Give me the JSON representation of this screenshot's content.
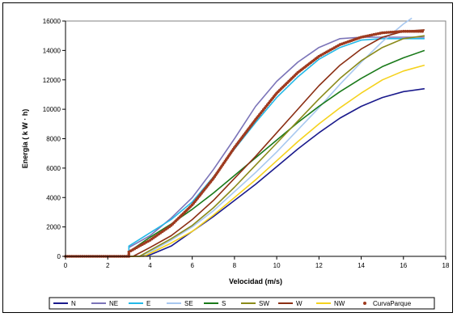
{
  "chart_data": {
    "type": "line",
    "xlabel": "Velocidad (m/s)",
    "ylabel": "Energía ( k W · h)",
    "xlim": [
      0,
      18
    ],
    "ylim": [
      0,
      16000
    ],
    "xticks": [
      "0",
      "2",
      "4",
      "6",
      "8",
      "10",
      "12",
      "14",
      "16",
      "18"
    ],
    "yticks": [
      "0",
      "2000",
      "4000",
      "6000",
      "8000",
      "10000",
      "12000",
      "14000",
      "16000"
    ],
    "grid": false,
    "legend_position": "bottom",
    "series": [
      {
        "name": "N",
        "color": "#1a1a8c",
        "style": "line",
        "points": [
          [
            0,
            0
          ],
          [
            3.5,
            0
          ],
          [
            4,
            100
          ],
          [
            5,
            700
          ],
          [
            6,
            1700
          ],
          [
            7,
            2700
          ],
          [
            8,
            3800
          ],
          [
            9,
            4900
          ],
          [
            10,
            6100
          ],
          [
            11,
            7300
          ],
          [
            12,
            8400
          ],
          [
            13,
            9400
          ],
          [
            14,
            10200
          ],
          [
            15,
            10800
          ],
          [
            16,
            11200
          ],
          [
            17,
            11400
          ]
        ]
      },
      {
        "name": "NE",
        "color": "#7b74b8",
        "style": "line",
        "points": [
          [
            0,
            0
          ],
          [
            3,
            0
          ],
          [
            3,
            600
          ],
          [
            4,
            1400
          ],
          [
            5,
            2600
          ],
          [
            6,
            4000
          ],
          [
            7,
            5900
          ],
          [
            8,
            8000
          ],
          [
            9,
            10200
          ],
          [
            10,
            11900
          ],
          [
            11,
            13200
          ],
          [
            12,
            14200
          ],
          [
            13,
            14800
          ],
          [
            14,
            14900
          ],
          [
            17,
            14900
          ]
        ]
      },
      {
        "name": "E",
        "color": "#23b9e8",
        "style": "line",
        "points": [
          [
            0,
            0
          ],
          [
            3,
            0
          ],
          [
            3,
            700
          ],
          [
            4,
            1600
          ],
          [
            5,
            2500
          ],
          [
            6,
            3700
          ],
          [
            7,
            5400
          ],
          [
            8,
            7300
          ],
          [
            9,
            9100
          ],
          [
            10,
            10800
          ],
          [
            11,
            12200
          ],
          [
            12,
            13400
          ],
          [
            13,
            14200
          ],
          [
            14,
            14700
          ],
          [
            15,
            14800
          ],
          [
            17,
            14800
          ]
        ]
      },
      {
        "name": "SE",
        "color": "#a8c8f0",
        "style": "line",
        "points": [
          [
            0,
            0
          ],
          [
            3.5,
            0
          ],
          [
            4,
            300
          ],
          [
            5,
            1100
          ],
          [
            6,
            2000
          ],
          [
            7,
            3100
          ],
          [
            8,
            4400
          ],
          [
            9,
            5700
          ],
          [
            10,
            7100
          ],
          [
            11,
            8600
          ],
          [
            12,
            10100
          ],
          [
            13,
            11700
          ],
          [
            14,
            13200
          ],
          [
            15,
            14600
          ],
          [
            16,
            15800
          ],
          [
            16.4,
            16200
          ]
        ]
      },
      {
        "name": "S",
        "color": "#1a7a1a",
        "style": "line",
        "points": [
          [
            0,
            0
          ],
          [
            3,
            0
          ],
          [
            3,
            300
          ],
          [
            4,
            1300
          ],
          [
            5,
            2200
          ],
          [
            6,
            3200
          ],
          [
            7,
            4300
          ],
          [
            8,
            5500
          ],
          [
            9,
            6700
          ],
          [
            10,
            7900
          ],
          [
            11,
            9100
          ],
          [
            12,
            10200
          ],
          [
            13,
            11200
          ],
          [
            14,
            12100
          ],
          [
            15,
            12900
          ],
          [
            16,
            13500
          ],
          [
            17,
            14000
          ]
        ]
      },
      {
        "name": "SW",
        "color": "#8a8a1a",
        "style": "line",
        "points": [
          [
            0,
            0
          ],
          [
            3.5,
            0
          ],
          [
            4,
            400
          ],
          [
            5,
            1200
          ],
          [
            6,
            2100
          ],
          [
            7,
            3300
          ],
          [
            8,
            4700
          ],
          [
            9,
            6200
          ],
          [
            10,
            7700
          ],
          [
            11,
            9200
          ],
          [
            12,
            10700
          ],
          [
            13,
            12100
          ],
          [
            14,
            13300
          ],
          [
            15,
            14200
          ],
          [
            16,
            14800
          ],
          [
            17,
            15000
          ]
        ]
      },
      {
        "name": "W",
        "color": "#8b2f14",
        "style": "line",
        "points": [
          [
            0,
            0
          ],
          [
            3.2,
            0
          ],
          [
            4,
            600
          ],
          [
            5,
            1400
          ],
          [
            6,
            2500
          ],
          [
            7,
            3800
          ],
          [
            8,
            5300
          ],
          [
            9,
            6800
          ],
          [
            10,
            8400
          ],
          [
            11,
            10000
          ],
          [
            12,
            11600
          ],
          [
            13,
            13000
          ],
          [
            14,
            14100
          ],
          [
            15,
            14900
          ],
          [
            16,
            15300
          ],
          [
            17,
            15400
          ]
        ]
      },
      {
        "name": "NW",
        "color": "#f5d21e",
        "style": "line",
        "points": [
          [
            0,
            0
          ],
          [
            3.7,
            0
          ],
          [
            4,
            200
          ],
          [
            5,
            900
          ],
          [
            6,
            1700
          ],
          [
            7,
            2800
          ],
          [
            8,
            4000
          ],
          [
            9,
            5200
          ],
          [
            10,
            6500
          ],
          [
            11,
            7800
          ],
          [
            12,
            9000
          ],
          [
            13,
            10100
          ],
          [
            14,
            11100
          ],
          [
            15,
            12000
          ],
          [
            16,
            12600
          ],
          [
            17,
            13000
          ]
        ]
      },
      {
        "name": "CurvaParque",
        "color": "#9e3a1f",
        "style": "dots",
        "points": [
          [
            0,
            0
          ],
          [
            3,
            0
          ],
          [
            3,
            300
          ],
          [
            4,
            1100
          ],
          [
            5,
            2100
          ],
          [
            6,
            3500
          ],
          [
            7,
            5300
          ],
          [
            8,
            7400
          ],
          [
            9,
            9300
          ],
          [
            10,
            11100
          ],
          [
            11,
            12500
          ],
          [
            12,
            13600
          ],
          [
            13,
            14400
          ],
          [
            14,
            14900
          ],
          [
            15,
            15200
          ],
          [
            16,
            15300
          ],
          [
            17,
            15300
          ]
        ]
      }
    ]
  }
}
